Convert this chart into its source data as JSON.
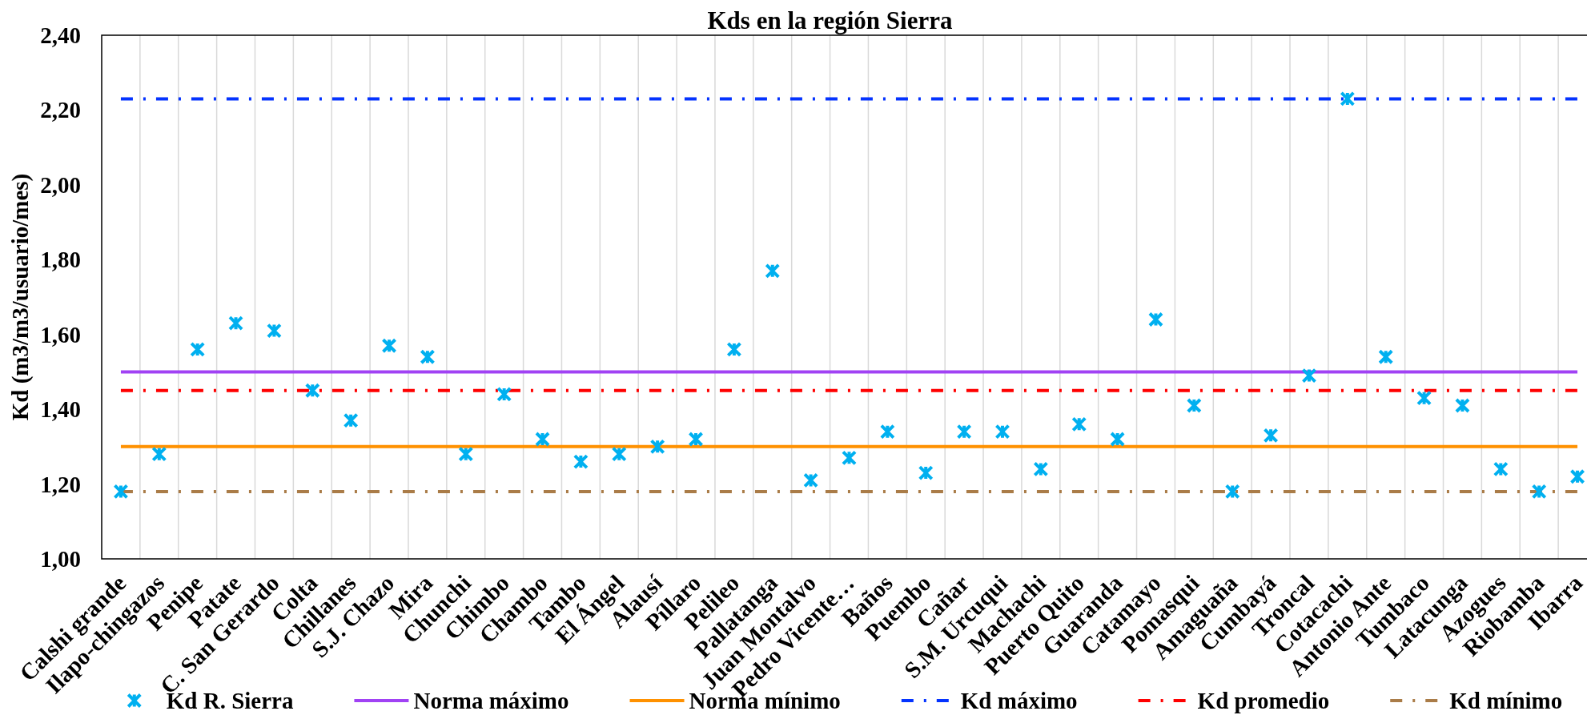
{
  "chart_data": {
    "type": "scatter",
    "title": "Kds en la región Sierra",
    "ylabel": "Kd (m3/m3/usuario/mes)",
    "categories": [
      "Calshi grande",
      "Ilapo-chingazos",
      "Penipe",
      "Patate",
      "C. San Gerardo",
      "Colta",
      "Chillanes",
      "S.J. Chazo",
      "Mira",
      "Chunchi",
      "Chimbo",
      "Chambo",
      "Tambo",
      "El Ángel",
      "Alausí",
      "Píllaro",
      "Pelileo",
      "Pallatanga",
      "Juan Montalvo",
      "Pedro Vicente…",
      "Baños",
      "Puembo",
      "Cañar",
      "S.M. Urcuqui",
      "Machachi",
      "Puerto Quito",
      "Guaranda",
      "Catamayo",
      "Pomasqui",
      "Amaguaña",
      "Cumbayá",
      "Troncal",
      "Cotacachi",
      "Antonio Ante",
      "Tumbaco",
      "Latacunga",
      "Azogues",
      "Riobamba",
      "Ibarra"
    ],
    "series": [
      {
        "name": "Kd R. Sierra",
        "color": "#00b0f0",
        "values": [
          1.18,
          1.28,
          1.56,
          1.63,
          1.61,
          1.45,
          1.37,
          1.57,
          1.54,
          1.28,
          1.44,
          1.32,
          1.26,
          1.28,
          1.3,
          1.32,
          1.56,
          1.77,
          1.21,
          1.27,
          1.34,
          1.23,
          1.34,
          1.34,
          1.24,
          1.36,
          1.32,
          1.64,
          1.41,
          1.18,
          1.33,
          1.49,
          2.23,
          1.54,
          1.43,
          1.41,
          1.24,
          1.18,
          1.22
        ]
      }
    ],
    "marker": "cross",
    "ylim": [
      1,
      2.4
    ],
    "yticks": [
      {
        "value": 1,
        "label": "1,00"
      },
      {
        "value": 1.2,
        "label": "1,20"
      },
      {
        "value": 1.4,
        "label": "1,40"
      },
      {
        "value": 1.6,
        "label": "1,60"
      },
      {
        "value": 1.8,
        "label": "1,80"
      },
      {
        "value": 2,
        "label": "2,00"
      },
      {
        "value": 2.2,
        "label": "2,20"
      },
      {
        "value": 2.4,
        "label": "2,40"
      }
    ],
    "grid": "x",
    "legend": "bottom",
    "ref_lines": [
      {
        "axis": "y",
        "value": 1.5,
        "label": "Norma máximo",
        "color": "#a142f4",
        "line_style": "solid"
      },
      {
        "axis": "y",
        "value": 1.3,
        "label": "Norma mínimo",
        "color": "#ff9100",
        "line_style": "solid"
      },
      {
        "axis": "y",
        "value": 2.23,
        "label": "Kd máximo",
        "color": "#0433ff",
        "line_style": "dashdot"
      },
      {
        "axis": "y",
        "value": 1.45,
        "label": "Kd promedio",
        "color": "#ff0000",
        "line_style": "dashdot"
      },
      {
        "axis": "y",
        "value": 1.18,
        "label": "Kd mínimo",
        "color": "#aa7c48",
        "line_style": "dashdot"
      }
    ]
  }
}
